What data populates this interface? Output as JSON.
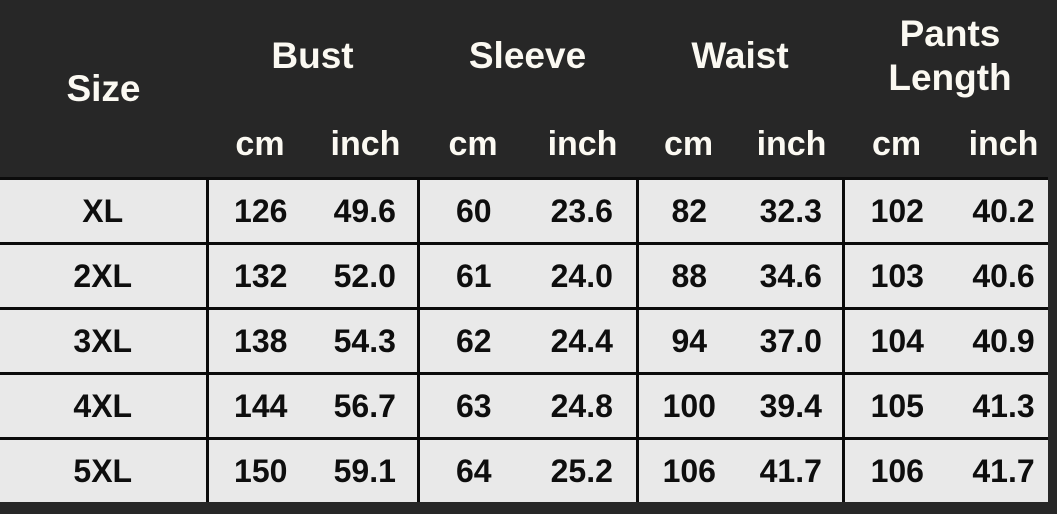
{
  "colors": {
    "header_bg": "#272727",
    "header_text": "#fbf9f2",
    "row_bg": "#e9e9e9",
    "body_text": "#0e0e0e",
    "rule": "#0b0b0b"
  },
  "chart_data": {
    "type": "table",
    "header": {
      "size_label": "Size",
      "groups": [
        "Bust",
        "Sleeve",
        "Waist",
        "Pants Length"
      ],
      "units": [
        "cm",
        "inch",
        "cm",
        "inch",
        "cm",
        "inch",
        "cm",
        "inch"
      ]
    },
    "rows": [
      {
        "size": "XL",
        "values": [
          "126",
          "49.6",
          "60",
          "23.6",
          "82",
          "32.3",
          "102",
          "40.2"
        ]
      },
      {
        "size": "2XL",
        "values": [
          "132",
          "52.0",
          "61",
          "24.0",
          "88",
          "34.6",
          "103",
          "40.6"
        ]
      },
      {
        "size": "3XL",
        "values": [
          "138",
          "54.3",
          "62",
          "24.4",
          "94",
          "37.0",
          "104",
          "40.9"
        ]
      },
      {
        "size": "4XL",
        "values": [
          "144",
          "56.7",
          "63",
          "24.8",
          "100",
          "39.4",
          "105",
          "41.3"
        ]
      },
      {
        "size": "5XL",
        "values": [
          "150",
          "59.1",
          "64",
          "25.2",
          "106",
          "41.7",
          "106",
          "41.7"
        ]
      }
    ]
  }
}
